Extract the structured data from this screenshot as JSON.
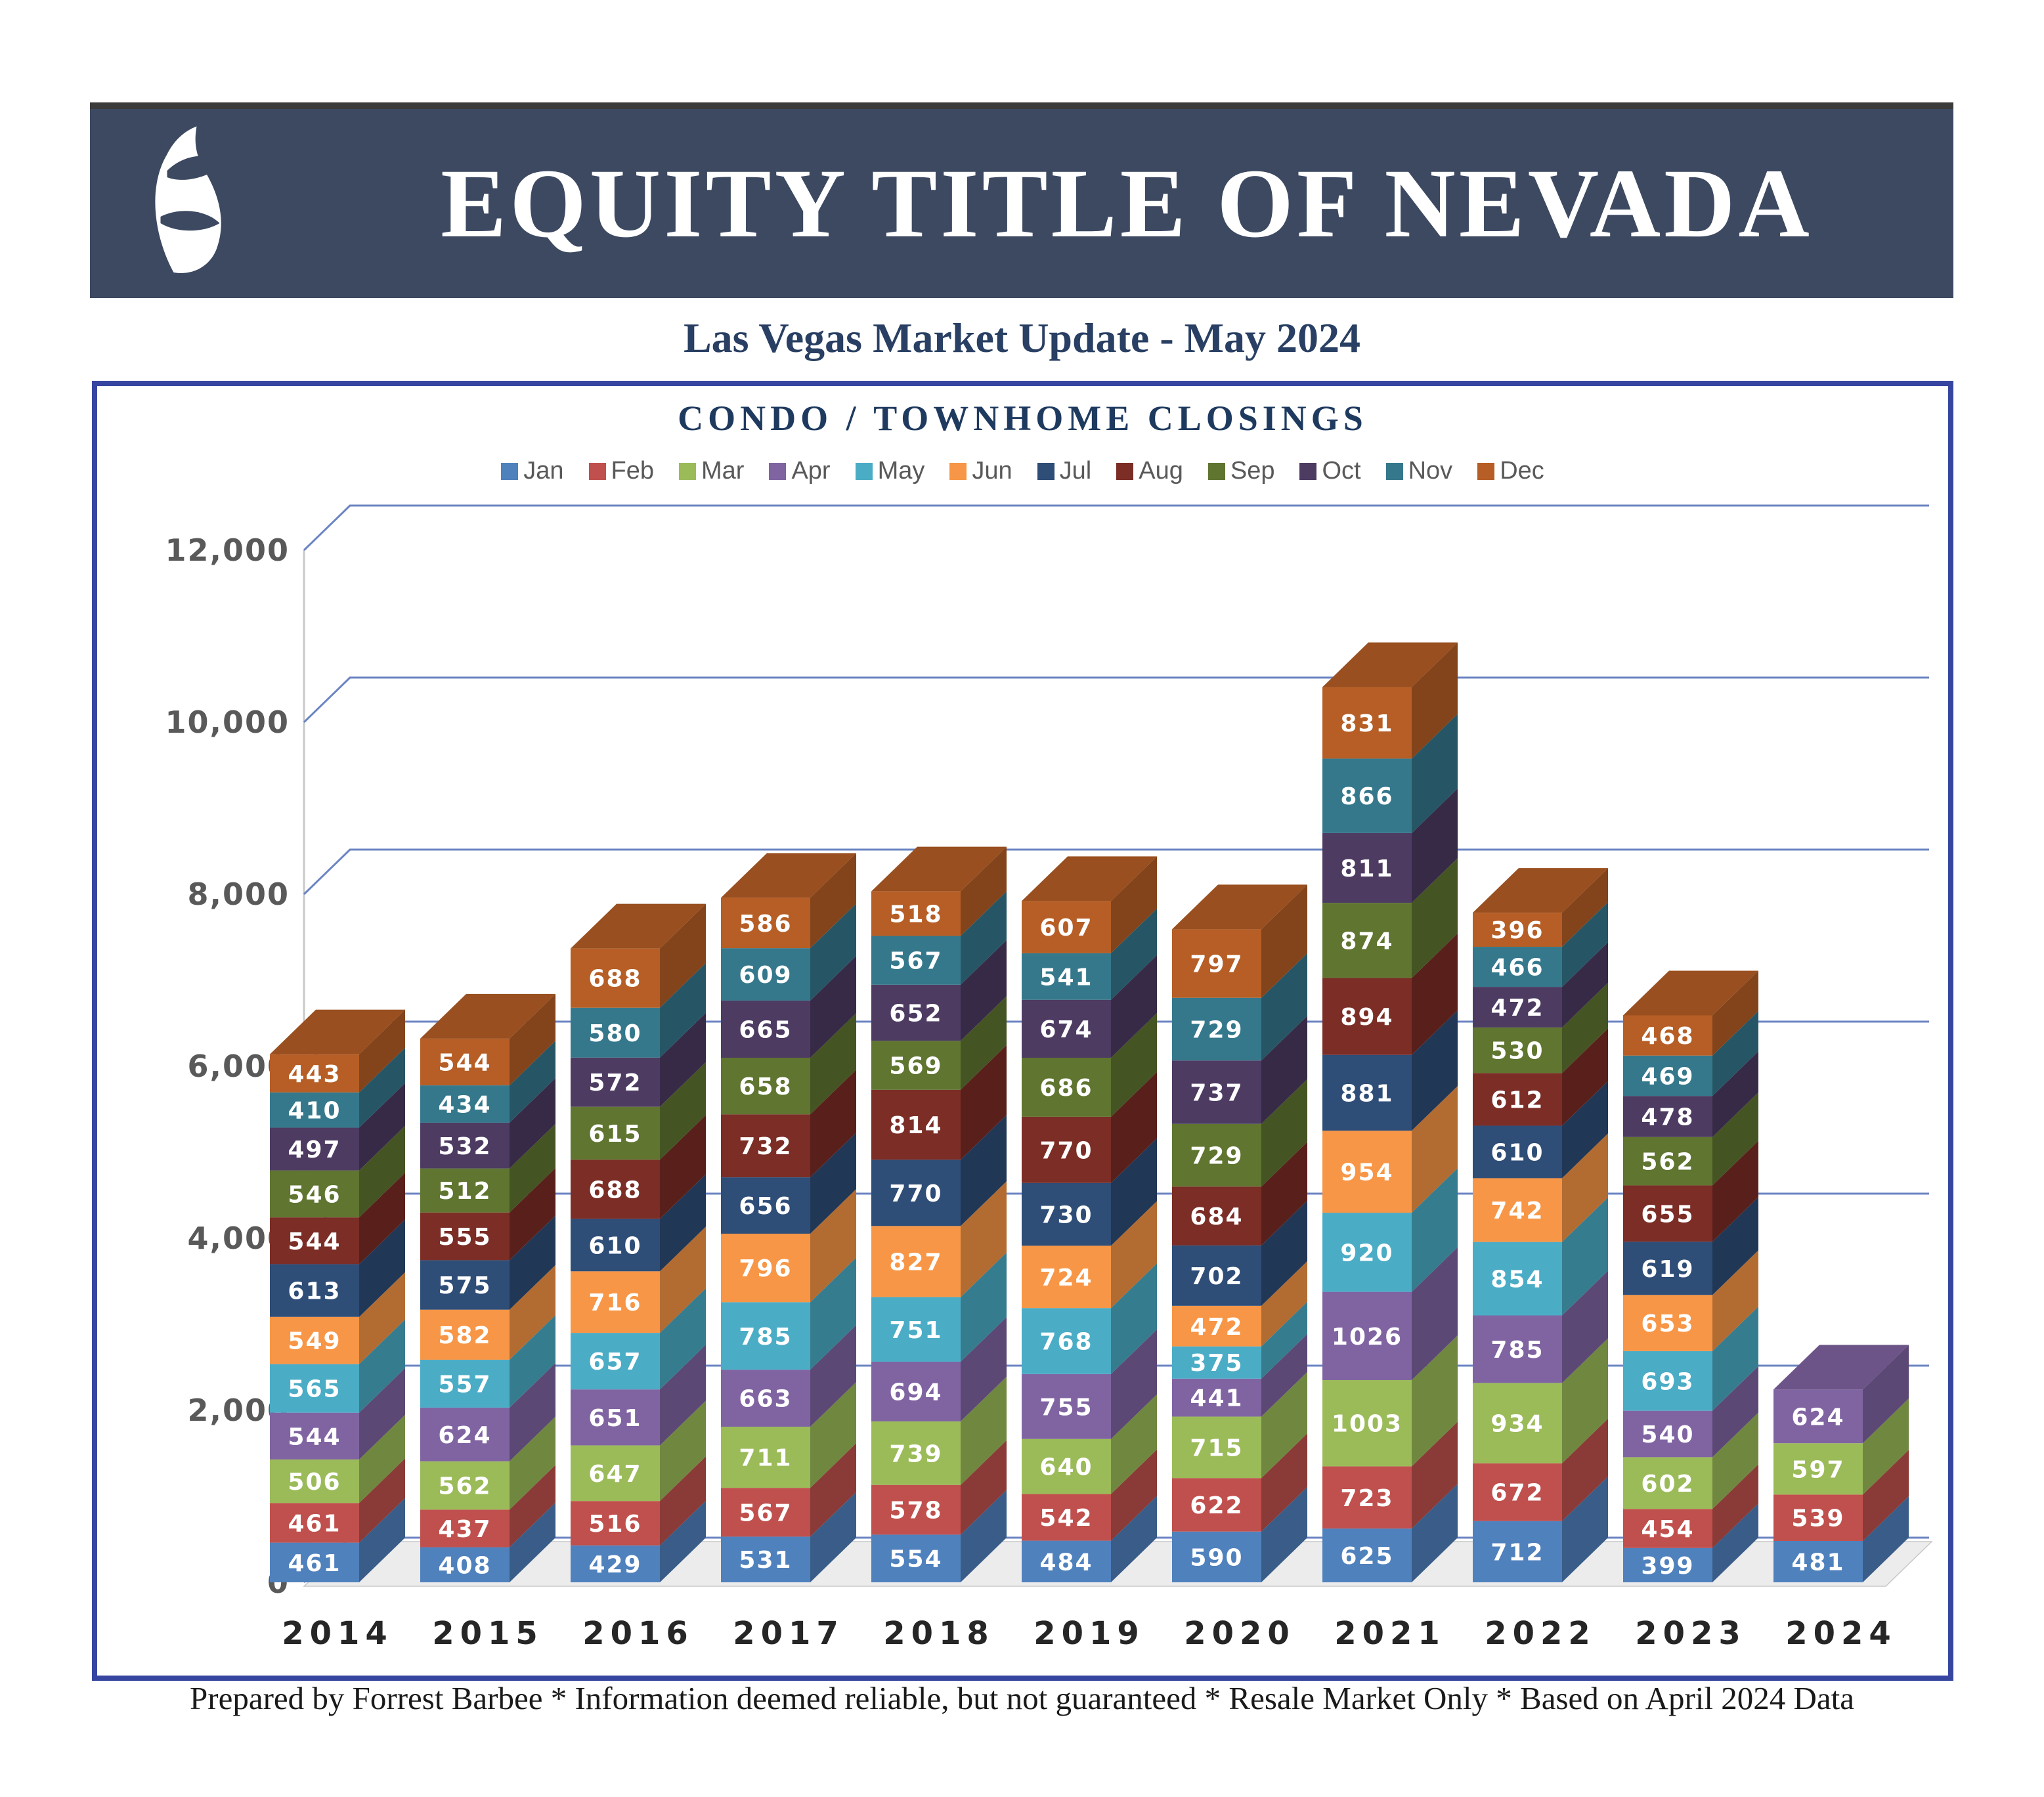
{
  "header": {
    "brand": "EQUITY TITLE OF NEVADA"
  },
  "subtitle": "Las Vegas Market Update - May 2024",
  "footer": "Prepared by Forrest Barbee * Information deemed reliable, but not guaranteed * Resale Market Only * Based on April 2024 Data",
  "colors": {
    "banner_bg": "#3C4961",
    "chart_border": "#3646A0",
    "gridline": "#6B84C2",
    "title_text": "#1F3A5F"
  },
  "chart_data": {
    "type": "bar",
    "stacked": true,
    "threed": true,
    "title": "CONDO / TOWNHOME CLOSINGS",
    "xlabel": "",
    "ylabel": "",
    "ylim": [
      0,
      12000
    ],
    "ytick_step": 2000,
    "ytick_labels": [
      "0",
      "2,000",
      "4,000",
      "6,000",
      "8,000",
      "10,000",
      "12,000"
    ],
    "grid": true,
    "legend_position": "top",
    "categories": [
      "2014",
      "2015",
      "2016",
      "2017",
      "2018",
      "2019",
      "2020",
      "2021",
      "2022",
      "2023",
      "2024"
    ],
    "series": [
      {
        "name": "Jan",
        "color": "#4F81BD",
        "values": [
          461,
          408,
          429,
          531,
          554,
          484,
          590,
          625,
          712,
          399,
          481
        ]
      },
      {
        "name": "Feb",
        "color": "#C0504D",
        "values": [
          461,
          437,
          516,
          567,
          578,
          542,
          622,
          723,
          672,
          454,
          539
        ]
      },
      {
        "name": "Mar",
        "color": "#9BBB59",
        "values": [
          506,
          562,
          647,
          711,
          739,
          640,
          715,
          1003,
          934,
          602,
          597
        ]
      },
      {
        "name": "Apr",
        "color": "#8064A2",
        "values": [
          544,
          624,
          651,
          663,
          694,
          755,
          441,
          1026,
          785,
          540,
          624
        ]
      },
      {
        "name": "May",
        "color": "#4BACC6",
        "values": [
          565,
          557,
          657,
          785,
          751,
          768,
          375,
          920,
          854,
          693,
          null
        ]
      },
      {
        "name": "Jun",
        "color": "#F79646",
        "values": [
          549,
          582,
          716,
          796,
          827,
          724,
          472,
          954,
          742,
          653,
          null
        ]
      },
      {
        "name": "Jul",
        "color": "#2E4D77",
        "values": [
          613,
          575,
          610,
          656,
          770,
          730,
          702,
          881,
          610,
          619,
          null
        ]
      },
      {
        "name": "Aug",
        "color": "#7B2D26",
        "values": [
          544,
          555,
          688,
          732,
          814,
          770,
          684,
          894,
          612,
          655,
          null
        ]
      },
      {
        "name": "Sep",
        "color": "#5F7530",
        "values": [
          546,
          512,
          615,
          658,
          569,
          686,
          729,
          874,
          530,
          562,
          null
        ]
      },
      {
        "name": "Oct",
        "color": "#4D3B62",
        "values": [
          497,
          532,
          572,
          665,
          652,
          674,
          737,
          811,
          472,
          478,
          null
        ]
      },
      {
        "name": "Nov",
        "color": "#35788C",
        "values": [
          410,
          434,
          580,
          609,
          567,
          541,
          729,
          866,
          466,
          469,
          null
        ]
      },
      {
        "name": "Dec",
        "color": "#B65E25",
        "values": [
          443,
          544,
          688,
          586,
          518,
          607,
          797,
          831,
          396,
          468,
          null
        ]
      }
    ]
  }
}
